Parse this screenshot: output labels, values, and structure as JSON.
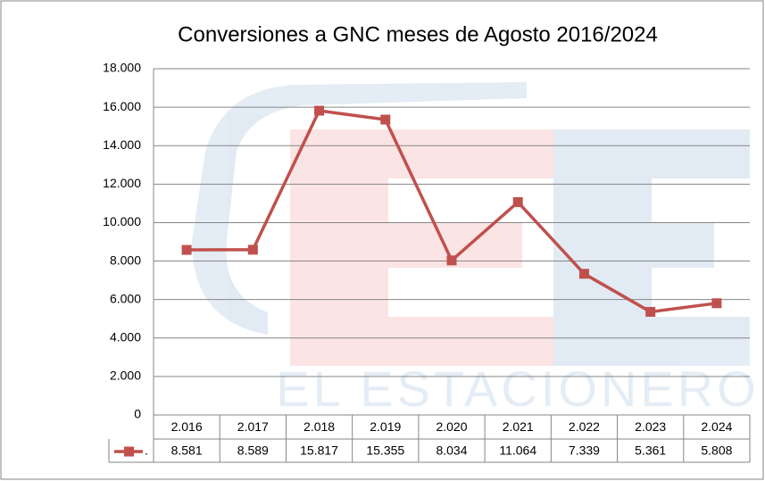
{
  "chart_data": {
    "type": "line",
    "title": "Conversiones a GNC  meses de Agosto 2016/2024",
    "watermark": "EL ESTACIONERO",
    "categories": [
      "2.016",
      "2.017",
      "2.018",
      "2.019",
      "2.020",
      "2.021",
      "2.022",
      "2.023",
      "2.024"
    ],
    "series": [
      {
        "name": ".",
        "color": "#c0504d",
        "values": [
          8581,
          8589,
          15817,
          15355,
          8034,
          11064,
          7339,
          5361,
          5808
        ],
        "value_labels": [
          "8.581",
          "8.589",
          "15.817",
          "15.355",
          "8.034",
          "11.064",
          "7.339",
          "5.361",
          "5.808"
        ]
      }
    ],
    "ylim": [
      0,
      18000
    ],
    "yticks": [
      0,
      {
        "value": 2000,
        "label": "2.000"
      },
      {
        "value": 4000,
        "label": "4.000"
      },
      {
        "value": 6000,
        "label": "6.000"
      },
      {
        "value": 8000,
        "label": "8.000"
      },
      {
        "value": 10000,
        "label": "10.000"
      },
      {
        "value": 12000,
        "label": "12.000"
      },
      {
        "value": 14000,
        "label": "14.000"
      },
      {
        "value": 16000,
        "label": "16.000"
      },
      {
        "value": 18000,
        "label": "18.000"
      }
    ],
    "grid": true,
    "data_table": true
  }
}
